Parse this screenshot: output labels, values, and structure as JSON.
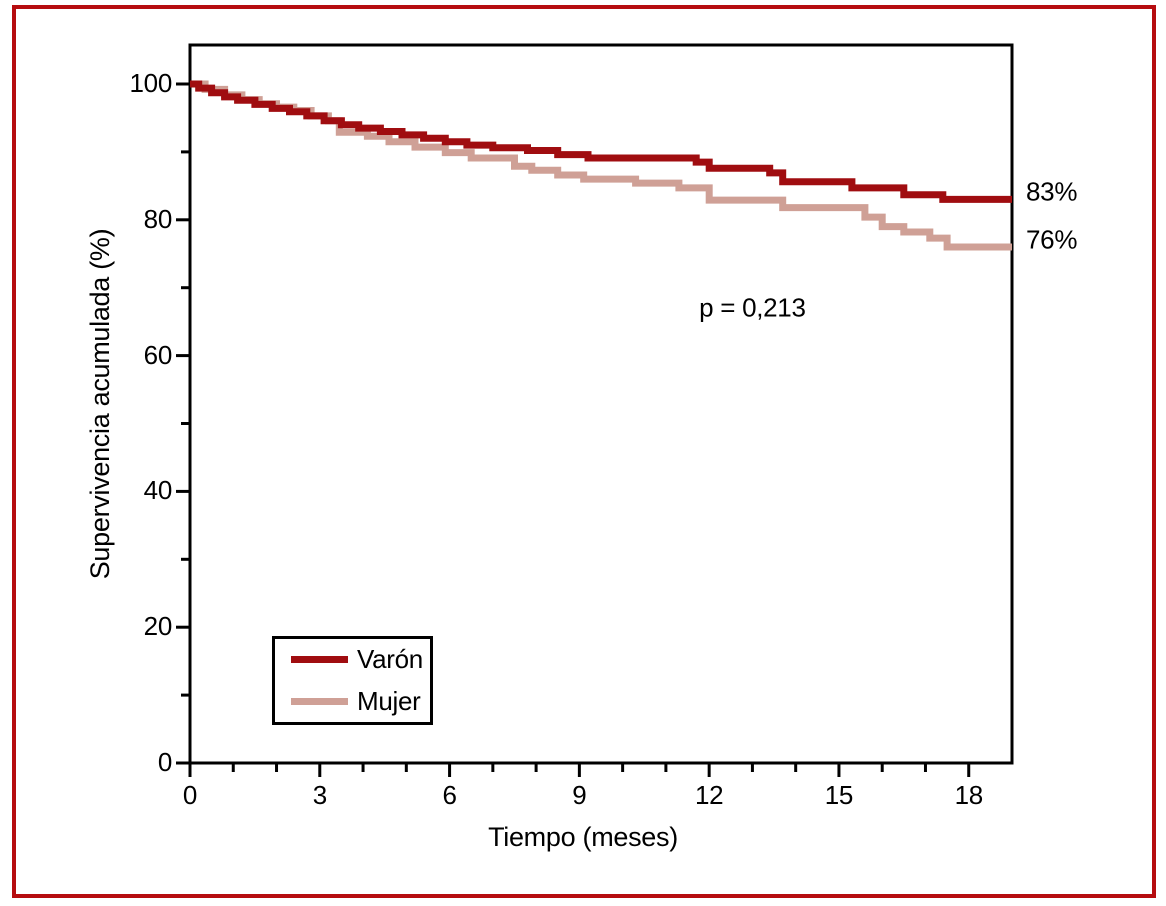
{
  "figure": {
    "frame_color": "#b60d10",
    "background": "#ffffff",
    "text_color": "#000000",
    "axis_color": "#000000"
  },
  "chart_data": {
    "type": "line",
    "chart_style": "kaplan-meier-step",
    "title": "",
    "xlabel": "Tiempo (meses)",
    "ylabel": "Supervivencia acumulada (%)",
    "xlim": [
      0,
      19
    ],
    "ylim": [
      0,
      105.7
    ],
    "x_major_ticks": [
      0,
      3,
      6,
      9,
      12,
      15,
      18
    ],
    "x_minor_ticks": [
      1,
      2,
      4,
      5,
      7,
      8,
      10,
      11,
      13,
      14,
      16,
      17
    ],
    "y_major_ticks": [
      0,
      20,
      40,
      60,
      80,
      100
    ],
    "y_minor_ticks": [
      10,
      30,
      50,
      70,
      90
    ],
    "grid": false,
    "legend_position": "inside-bottom-left",
    "annotation": {
      "text": "p = 0,213",
      "x": 13,
      "y": 67
    },
    "series": [
      {
        "name": "Varón",
        "color": "#a00d10",
        "end_label": "83%",
        "points": [
          [
            0,
            100
          ],
          [
            0.2,
            99.4
          ],
          [
            0.5,
            98.7
          ],
          [
            0.8,
            98.1
          ],
          [
            1.1,
            97.6
          ],
          [
            1.5,
            97.0
          ],
          [
            1.9,
            96.4
          ],
          [
            2.3,
            95.9
          ],
          [
            2.7,
            95.3
          ],
          [
            3.1,
            94.6
          ],
          [
            3.5,
            94.0
          ],
          [
            3.9,
            93.5
          ],
          [
            4.4,
            93.0
          ],
          [
            4.9,
            92.5
          ],
          [
            5.4,
            92.0
          ],
          [
            5.9,
            91.5
          ],
          [
            6.4,
            91.0
          ],
          [
            7.0,
            90.6
          ],
          [
            7.8,
            90.2
          ],
          [
            8.5,
            89.6
          ],
          [
            9.2,
            89.1
          ],
          [
            11.7,
            88.5
          ],
          [
            12.0,
            87.6
          ],
          [
            13.4,
            86.9
          ],
          [
            13.7,
            85.6
          ],
          [
            15.3,
            84.7
          ],
          [
            16.5,
            83.7
          ],
          [
            17.4,
            83.0
          ],
          [
            19,
            83.0
          ]
        ]
      },
      {
        "name": "Mujer",
        "color": "#cfa096",
        "end_label": "76%",
        "points": [
          [
            0,
            100
          ],
          [
            0.35,
            99.2
          ],
          [
            0.8,
            98.4
          ],
          [
            1.2,
            97.7
          ],
          [
            1.6,
            97.1
          ],
          [
            2.0,
            96.6
          ],
          [
            2.4,
            96.1
          ],
          [
            2.8,
            95.3
          ],
          [
            3.2,
            94.6
          ],
          [
            3.45,
            92.9
          ],
          [
            4.1,
            92.3
          ],
          [
            4.6,
            91.5
          ],
          [
            5.2,
            90.7
          ],
          [
            5.9,
            89.9
          ],
          [
            6.5,
            89.1
          ],
          [
            7.5,
            87.9
          ],
          [
            7.9,
            87.3
          ],
          [
            8.5,
            86.6
          ],
          [
            9.1,
            86.0
          ],
          [
            10.3,
            85.4
          ],
          [
            11.3,
            84.7
          ],
          [
            12.0,
            82.9
          ],
          [
            13.7,
            81.8
          ],
          [
            15.6,
            80.4
          ],
          [
            16.0,
            79.0
          ],
          [
            16.5,
            78.2
          ],
          [
            17.1,
            77.3
          ],
          [
            17.5,
            76.0
          ],
          [
            19,
            76.0
          ]
        ]
      }
    ]
  }
}
